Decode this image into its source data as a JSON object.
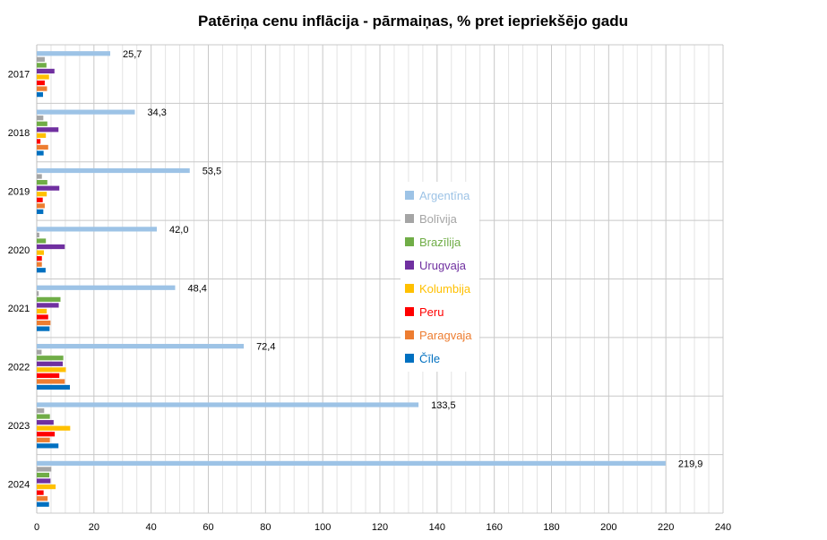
{
  "chart_data": {
    "type": "bar",
    "orientation": "horizontal",
    "title": "Patēriņa cenu inflācija - pārmaiņas, % pret iepriekšējo gadu",
    "xlabel": "",
    "ylabel": "",
    "categories": [
      "2017",
      "2018",
      "2019",
      "2020",
      "2021",
      "2022",
      "2023",
      "2024"
    ],
    "xlim": [
      0,
      240
    ],
    "xticks": [
      0,
      20,
      40,
      60,
      80,
      100,
      120,
      140,
      160,
      180,
      200,
      220,
      240
    ],
    "grid": true,
    "legend_position": "right-center",
    "series": [
      {
        "name": "Argentīna",
        "color": "#9dc3e6",
        "values": [
          25.7,
          34.3,
          53.5,
          42.0,
          48.4,
          72.4,
          133.5,
          219.9
        ],
        "labels": [
          "25,7",
          "34,3",
          "53,5",
          "42,0",
          "48,4",
          "72,4",
          "133,5",
          "219,9"
        ]
      },
      {
        "name": "Bolīvija",
        "color": "#a5a5a5",
        "values": [
          2.8,
          2.3,
          1.8,
          0.9,
          0.7,
          1.7,
          2.6,
          5.1
        ]
      },
      {
        "name": "Brazīlija",
        "color": "#70ad47",
        "values": [
          3.4,
          3.7,
          3.7,
          3.2,
          8.3,
          9.3,
          4.6,
          4.4
        ]
      },
      {
        "name": "Urugvaja",
        "color": "#7030a0",
        "values": [
          6.2,
          7.6,
          7.9,
          9.8,
          7.7,
          9.1,
          5.9,
          4.8
        ]
      },
      {
        "name": "Kolumbija",
        "color": "#ffc000",
        "values": [
          4.3,
          3.2,
          3.5,
          2.5,
          3.5,
          10.2,
          11.7,
          6.6
        ]
      },
      {
        "name": "Peru",
        "color": "#ff0000",
        "values": [
          2.8,
          1.3,
          2.1,
          1.8,
          4.0,
          7.9,
          6.3,
          2.4
        ]
      },
      {
        "name": "Paragvaja",
        "color": "#ed7d31",
        "values": [
          3.6,
          4.0,
          2.8,
          1.8,
          4.8,
          9.8,
          4.6,
          3.8
        ]
      },
      {
        "name": "Čīle",
        "color": "#0070c0",
        "values": [
          2.2,
          2.4,
          2.3,
          3.1,
          4.5,
          11.6,
          7.6,
          4.3
        ]
      }
    ]
  }
}
